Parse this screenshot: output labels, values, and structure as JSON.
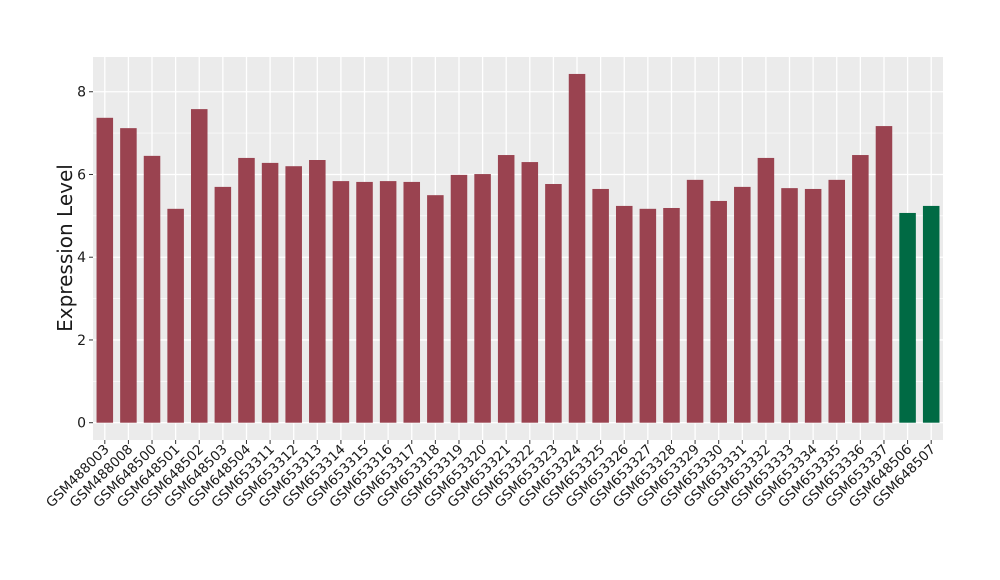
{
  "chart_data": {
    "type": "bar",
    "title": "",
    "xlabel": "",
    "ylabel": "Expression Level",
    "ylim": [
      -0.4,
      8.8
    ],
    "yticks": [
      0,
      2,
      4,
      6,
      8
    ],
    "grid": true,
    "legend": "none",
    "colors": {
      "default": "#9A4350",
      "highlight": "#006A44",
      "panel": "#EBEBEB",
      "grid": "#FFFFFF"
    },
    "categories": [
      "GSM488003",
      "GSM488008",
      "GSM648500",
      "GSM648501",
      "GSM648502",
      "GSM648503",
      "GSM648504",
      "GSM653311",
      "GSM653312",
      "GSM653313",
      "GSM653314",
      "GSM653315",
      "GSM653316",
      "GSM653317",
      "GSM653318",
      "GSM653319",
      "GSM653320",
      "GSM653321",
      "GSM653322",
      "GSM653323",
      "GSM653324",
      "GSM653325",
      "GSM653326",
      "GSM653327",
      "GSM653328",
      "GSM653329",
      "GSM653330",
      "GSM653331",
      "GSM653332",
      "GSM653333",
      "GSM653334",
      "GSM653335",
      "GSM653336",
      "GSM653337",
      "GSM648506",
      "GSM648507"
    ],
    "values": [
      7.37,
      7.12,
      6.45,
      5.17,
      7.58,
      5.7,
      6.4,
      6.28,
      6.2,
      6.35,
      5.84,
      5.82,
      5.84,
      5.82,
      5.5,
      5.99,
      6.01,
      6.47,
      6.3,
      5.77,
      8.43,
      5.65,
      5.24,
      5.17,
      5.19,
      5.87,
      5.36,
      5.7,
      6.4,
      5.67,
      5.65,
      5.87,
      6.47,
      7.17,
      5.07,
      5.24
    ],
    "groups": [
      "default",
      "default",
      "default",
      "default",
      "default",
      "default",
      "default",
      "default",
      "default",
      "default",
      "default",
      "default",
      "default",
      "default",
      "default",
      "default",
      "default",
      "default",
      "default",
      "default",
      "default",
      "default",
      "default",
      "default",
      "default",
      "default",
      "default",
      "default",
      "default",
      "default",
      "default",
      "default",
      "default",
      "default",
      "highlight",
      "highlight"
    ]
  }
}
